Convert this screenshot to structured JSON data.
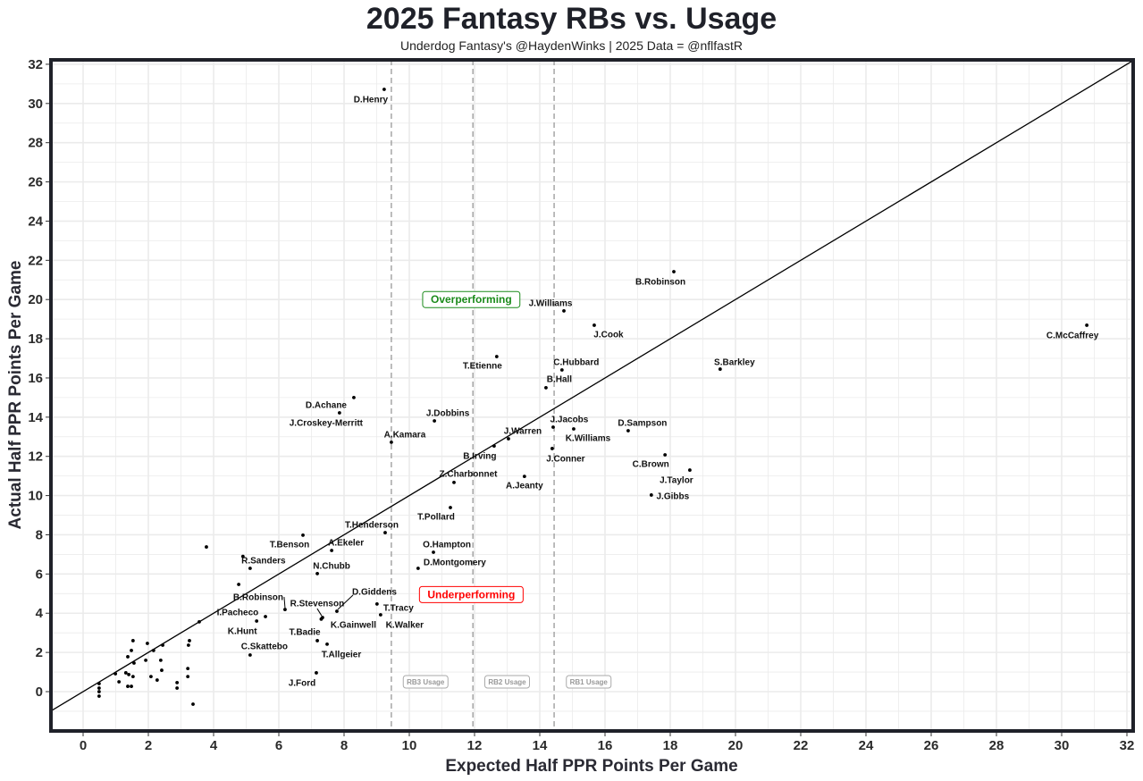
{
  "chart_data": {
    "type": "scatter",
    "title": "2025 Fantasy RBs vs. Usage",
    "subtitle": "Underdog Fantasy's @HaydenWinks | 2025 Data = @nflfastR",
    "xlabel": "Expected Half PPR Points Per Game",
    "ylabel": "Actual Half PPR Points Per Game",
    "xlim": [
      -1,
      32.2
    ],
    "ylim": [
      -2,
      32.2
    ],
    "xticks": [
      0,
      2,
      4,
      6,
      8,
      10,
      12,
      14,
      16,
      18,
      20,
      22,
      24,
      26,
      28,
      30,
      32
    ],
    "yticks": [
      0,
      2,
      4,
      6,
      8,
      10,
      12,
      14,
      16,
      18,
      20,
      22,
      24,
      26,
      28,
      30,
      32
    ],
    "grid": true,
    "reference_line": "y = x",
    "tier_lines": [
      {
        "x": 9.45,
        "label": "RB3 Usage",
        "label_x": 10.5
      },
      {
        "x": 11.95,
        "label": "RB2 Usage",
        "label_x": 13.0
      },
      {
        "x": 14.44,
        "label": "RB1 Usage",
        "label_x": 15.5
      }
    ],
    "annotations": [
      {
        "text": "Overperforming",
        "x": 11.9,
        "y": 20.0,
        "color": "#1a8a1a"
      },
      {
        "text": "Underperforming",
        "x": 11.9,
        "y": 4.95,
        "color": "#ff0000"
      }
    ],
    "points": [
      {
        "name": "D.Henry",
        "x": 9.23,
        "y": 30.72
      },
      {
        "name": "B.Robinson",
        "x": 18.11,
        "y": 21.42
      },
      {
        "name": "J.Williams",
        "x": 14.74,
        "y": 19.42
      },
      {
        "name": "J.Cook",
        "x": 15.67,
        "y": 18.69
      },
      {
        "name": "C.McCaffrey",
        "x": 30.77,
        "y": 18.69
      },
      {
        "name": "T.Etienne",
        "x": 12.68,
        "y": 17.09
      },
      {
        "name": "C.Hubbard",
        "x": 14.68,
        "y": 16.41
      },
      {
        "name": "S.Barkley",
        "x": 19.53,
        "y": 16.45
      },
      {
        "name": "B.Hall",
        "x": 14.19,
        "y": 15.5
      },
      {
        "name": "D.Achane",
        "x": 8.3,
        "y": 15.0
      },
      {
        "name": "J.Croskey-Merritt",
        "x": 7.86,
        "y": 14.22
      },
      {
        "name": "J.Dobbins",
        "x": 10.77,
        "y": 13.81
      },
      {
        "name": "A.Kamara",
        "x": 9.45,
        "y": 12.72
      },
      {
        "name": "J.Jacobs",
        "x": 14.41,
        "y": 13.49
      },
      {
        "name": "K.Williams",
        "x": 15.04,
        "y": 13.4
      },
      {
        "name": "D.Sampson",
        "x": 16.71,
        "y": 13.31
      },
      {
        "name": "J.Warren",
        "x": 13.04,
        "y": 12.9
      },
      {
        "name": "B.Irving",
        "x": 12.6,
        "y": 12.53
      },
      {
        "name": "J.Conner",
        "x": 14.38,
        "y": 12.4
      },
      {
        "name": "C.Brown",
        "x": 17.84,
        "y": 12.08
      },
      {
        "name": "J.Taylor",
        "x": 18.6,
        "y": 11.3
      },
      {
        "name": "A.Jeanty",
        "x": 13.53,
        "y": 10.98
      },
      {
        "name": "Z.Charbonnet",
        "x": 11.37,
        "y": 10.67
      },
      {
        "name": "J.Gibbs",
        "x": 17.42,
        "y": 10.03
      },
      {
        "name": "T.Pollard",
        "x": 11.26,
        "y": 9.39
      },
      {
        "name": "T.Henderson",
        "x": 9.26,
        "y": 8.11
      },
      {
        "name": "T.Benson",
        "x": 6.74,
        "y": 7.98
      },
      {
        "name": "A.Ekeler",
        "x": 7.62,
        "y": 7.2
      },
      {
        "name": "O.Hampton",
        "x": 10.74,
        "y": 7.11
      },
      {
        "name": "R.Sanders",
        "x": 5.12,
        "y": 6.29
      },
      {
        "name": "D.Montgomery",
        "x": 10.27,
        "y": 6.29
      },
      {
        "name": "N.Chubb",
        "x": 7.18,
        "y": 6.02
      },
      {
        "name": "B.Robinson",
        "x": 6.19,
        "y": 4.19
      },
      {
        "name": "R.Stevenson",
        "x": 7.34,
        "y": 3.78
      },
      {
        "name": "K.Gainwell",
        "x": 7.3,
        "y": 3.7
      },
      {
        "name": "D.Giddens",
        "x": 7.78,
        "y": 4.1
      },
      {
        "name": "T.Tracy",
        "x": 9.01,
        "y": 4.47
      },
      {
        "name": "K.Walker",
        "x": 9.12,
        "y": 3.92
      },
      {
        "name": "I.Pacheco",
        "x": 3.56,
        "y": 3.56
      },
      {
        "name": "K.Hunt",
        "x": 5.32,
        "y": 3.6
      },
      {
        "name": "T.Badie",
        "x": 7.18,
        "y": 2.6
      },
      {
        "name": "T.Allgeier",
        "x": 7.48,
        "y": 2.42
      },
      {
        "name": "C.Skattebo",
        "x": 5.12,
        "y": 1.87
      },
      {
        "name": "J.Ford",
        "x": 7.15,
        "y": 0.96
      },
      {
        "name": "",
        "x": 3.78,
        "y": 7.38
      },
      {
        "name": "",
        "x": 4.9,
        "y": 6.9
      },
      {
        "name": "",
        "x": 4.77,
        "y": 5.47
      },
      {
        "name": "",
        "x": 5.59,
        "y": 3.83
      },
      {
        "name": "",
        "x": 0.49,
        "y": 0.41
      },
      {
        "name": "",
        "x": 0.49,
        "y": 0.18
      },
      {
        "name": "",
        "x": 0.49,
        "y": 0.0
      },
      {
        "name": "",
        "x": 0.49,
        "y": -0.23
      },
      {
        "name": "",
        "x": 0.99,
        "y": 0.91
      },
      {
        "name": "",
        "x": 1.1,
        "y": 0.5
      },
      {
        "name": "",
        "x": 1.31,
        "y": 0.96
      },
      {
        "name": "",
        "x": 1.4,
        "y": 0.87
      },
      {
        "name": "",
        "x": 1.53,
        "y": 0.77
      },
      {
        "name": "",
        "x": 1.37,
        "y": 0.27
      },
      {
        "name": "",
        "x": 1.48,
        "y": 0.27
      },
      {
        "name": "",
        "x": 1.56,
        "y": 1.46
      },
      {
        "name": "",
        "x": 1.37,
        "y": 1.78
      },
      {
        "name": "",
        "x": 1.48,
        "y": 2.1
      },
      {
        "name": "",
        "x": 1.53,
        "y": 2.6
      },
      {
        "name": "",
        "x": 1.97,
        "y": 2.46
      },
      {
        "name": "",
        "x": 1.92,
        "y": 1.6
      },
      {
        "name": "",
        "x": 2.16,
        "y": 2.1
      },
      {
        "name": "",
        "x": 2.08,
        "y": 0.77
      },
      {
        "name": "",
        "x": 2.27,
        "y": 0.59
      },
      {
        "name": "",
        "x": 2.38,
        "y": 1.6
      },
      {
        "name": "",
        "x": 2.41,
        "y": 1.09
      },
      {
        "name": "",
        "x": 2.44,
        "y": 2.37
      },
      {
        "name": "",
        "x": 2.88,
        "y": 0.46
      },
      {
        "name": "",
        "x": 2.88,
        "y": 0.18
      },
      {
        "name": "",
        "x": 3.21,
        "y": 1.18
      },
      {
        "name": "",
        "x": 3.21,
        "y": 0.77
      },
      {
        "name": "",
        "x": 3.23,
        "y": 2.37
      },
      {
        "name": "",
        "x": 3.26,
        "y": 2.6
      },
      {
        "name": "",
        "x": 3.37,
        "y": -0.64
      }
    ]
  }
}
